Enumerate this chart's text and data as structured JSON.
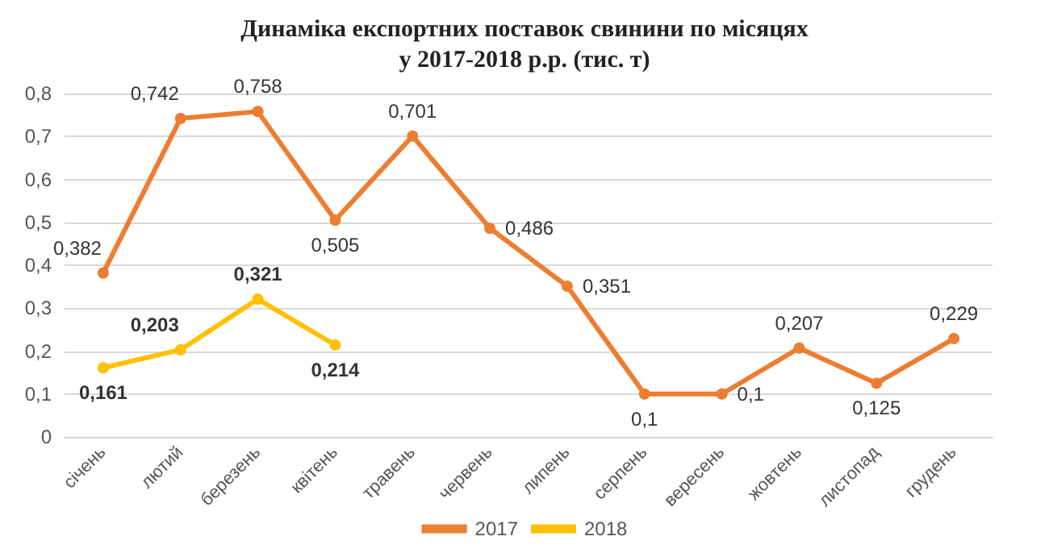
{
  "chart_data": {
    "type": "line",
    "title": "Динаміка експортних поставок свинини по місяцях\nу 2017-2018 р.р. (тис. т)",
    "categories": [
      "січень",
      "лютий",
      "березень",
      "квітень",
      "травень",
      "червень",
      "липень",
      "серпень",
      "вересень",
      "жовтень",
      "листопад",
      "грудень"
    ],
    "series": [
      {
        "name": "2017",
        "color": "#ed7d31",
        "values": [
          0.382,
          0.742,
          0.758,
          0.505,
          0.701,
          0.486,
          0.351,
          0.1,
          0.1,
          0.207,
          0.125,
          0.229
        ],
        "value_labels": [
          "0,382",
          "0,742",
          "0,758",
          "0,505",
          "0,701",
          "0,486",
          "0,351",
          "0,1",
          "0,1",
          "0,207",
          "0,125",
          "0,229"
        ]
      },
      {
        "name": "2018",
        "color": "#ffc000",
        "values": [
          0.161,
          0.203,
          0.321,
          0.214,
          null,
          null,
          null,
          null,
          null,
          null,
          null,
          null
        ],
        "value_labels": [
          "0,161",
          "0,203",
          "0,321",
          "0,214",
          null,
          null,
          null,
          null,
          null,
          null,
          null,
          null
        ]
      }
    ],
    "ylim": [
      0,
      0.8
    ],
    "yticks": [
      {
        "value": 0,
        "label": "0"
      },
      {
        "value": 0.1,
        "label": "0,1"
      },
      {
        "value": 0.2,
        "label": "0,2"
      },
      {
        "value": 0.3,
        "label": "0,3"
      },
      {
        "value": 0.4,
        "label": "0,4"
      },
      {
        "value": 0.5,
        "label": "0,5"
      },
      {
        "value": 0.6,
        "label": "0,6"
      },
      {
        "value": 0.7,
        "label": "0,7"
      },
      {
        "value": 0.8,
        "label": "0,8"
      }
    ],
    "grid": "y",
    "legend": "bottom",
    "marker": "circle",
    "line_style": "solid"
  }
}
